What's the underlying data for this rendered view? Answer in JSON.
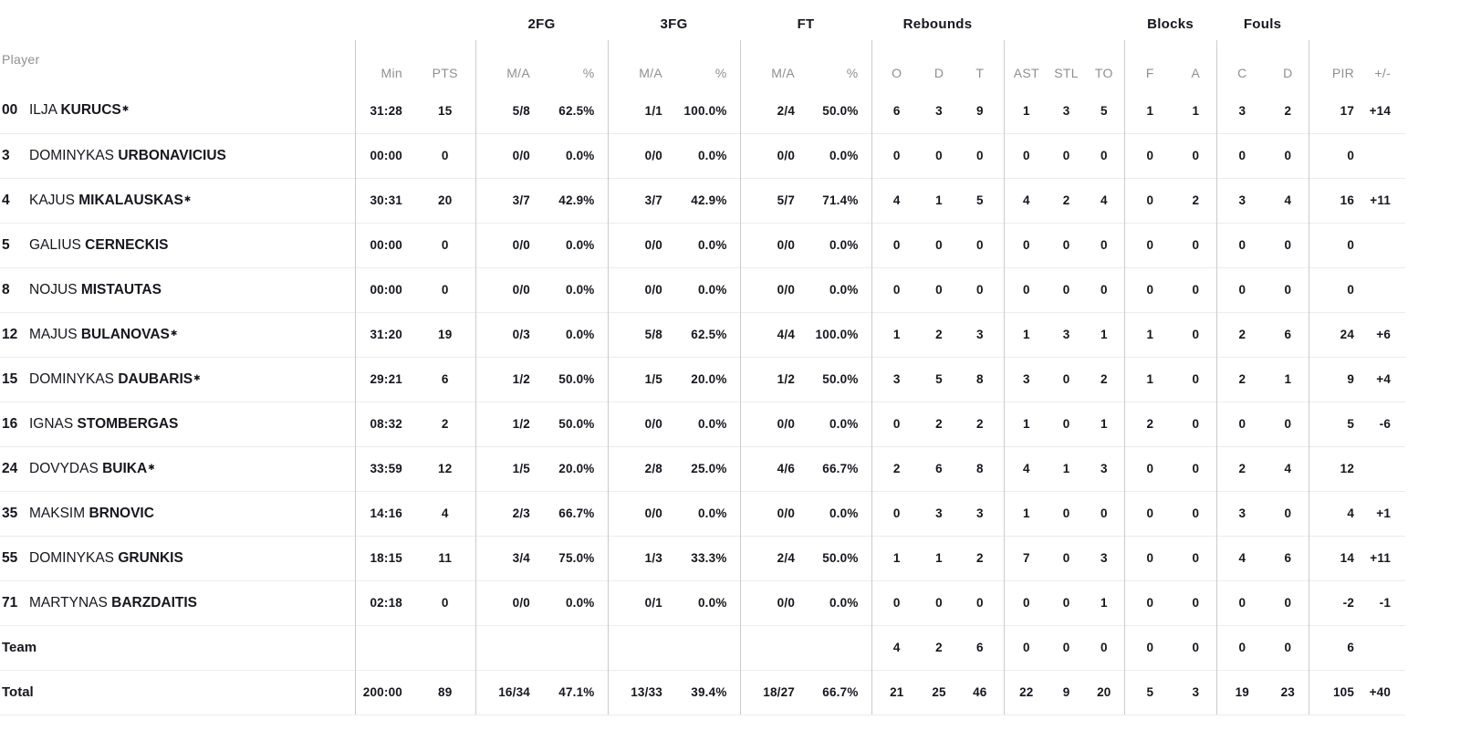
{
  "header": {
    "player_label": "Player",
    "group_labels": {
      "fg2": "2FG",
      "fg3": "3FG",
      "ft": "FT",
      "rebounds": "Rebounds",
      "blocks": "Blocks",
      "fouls": "Fouls"
    },
    "column_labels": [
      "Min",
      "PTS",
      "M/A",
      "%",
      "M/A",
      "%",
      "M/A",
      "%",
      "O",
      "D",
      "T",
      "AST",
      "STL",
      "TO",
      "F",
      "A",
      "C",
      "D",
      "PIR",
      "+/-"
    ]
  },
  "starter_marker": "✱",
  "colors": {
    "text": "#16161d",
    "muted": "#8f8f8f",
    "grid_vertical": "#cbcbcb",
    "grid_horizontal": "#ececec",
    "background": "#ffffff"
  },
  "rows": [
    {
      "number": "00",
      "first": "ILJA",
      "last": "KURUCS",
      "starter": true,
      "stats": [
        "31:28",
        "15",
        "5/8",
        "62.5%",
        "1/1",
        "100.0%",
        "2/4",
        "50.0%",
        "6",
        "3",
        "9",
        "1",
        "3",
        "5",
        "1",
        "1",
        "3",
        "2",
        "17",
        "+14"
      ]
    },
    {
      "number": "3",
      "first": "DOMINYKAS",
      "last": "URBONAVICIUS",
      "starter": false,
      "stats": [
        "00:00",
        "0",
        "0/0",
        "0.0%",
        "0/0",
        "0.0%",
        "0/0",
        "0.0%",
        "0",
        "0",
        "0",
        "0",
        "0",
        "0",
        "0",
        "0",
        "0",
        "0",
        "0",
        ""
      ]
    },
    {
      "number": "4",
      "first": "KAJUS",
      "last": "MIKALAUSKAS",
      "starter": true,
      "stats": [
        "30:31",
        "20",
        "3/7",
        "42.9%",
        "3/7",
        "42.9%",
        "5/7",
        "71.4%",
        "4",
        "1",
        "5",
        "4",
        "2",
        "4",
        "0",
        "2",
        "3",
        "4",
        "16",
        "+11"
      ]
    },
    {
      "number": "5",
      "first": "GALIUS",
      "last": "CERNECKIS",
      "starter": false,
      "stats": [
        "00:00",
        "0",
        "0/0",
        "0.0%",
        "0/0",
        "0.0%",
        "0/0",
        "0.0%",
        "0",
        "0",
        "0",
        "0",
        "0",
        "0",
        "0",
        "0",
        "0",
        "0",
        "0",
        ""
      ]
    },
    {
      "number": "8",
      "first": "NOJUS",
      "last": "MISTAUTAS",
      "starter": false,
      "stats": [
        "00:00",
        "0",
        "0/0",
        "0.0%",
        "0/0",
        "0.0%",
        "0/0",
        "0.0%",
        "0",
        "0",
        "0",
        "0",
        "0",
        "0",
        "0",
        "0",
        "0",
        "0",
        "0",
        ""
      ]
    },
    {
      "number": "12",
      "first": "MAJUS",
      "last": "BULANOVAS",
      "starter": true,
      "stats": [
        "31:20",
        "19",
        "0/3",
        "0.0%",
        "5/8",
        "62.5%",
        "4/4",
        "100.0%",
        "1",
        "2",
        "3",
        "1",
        "3",
        "1",
        "1",
        "0",
        "2",
        "6",
        "24",
        "+6"
      ]
    },
    {
      "number": "15",
      "first": "DOMINYKAS",
      "last": "DAUBARIS",
      "starter": true,
      "stats": [
        "29:21",
        "6",
        "1/2",
        "50.0%",
        "1/5",
        "20.0%",
        "1/2",
        "50.0%",
        "3",
        "5",
        "8",
        "3",
        "0",
        "2",
        "1",
        "0",
        "2",
        "1",
        "9",
        "+4"
      ]
    },
    {
      "number": "16",
      "first": "IGNAS",
      "last": "STOMBERGAS",
      "starter": false,
      "stats": [
        "08:32",
        "2",
        "1/2",
        "50.0%",
        "0/0",
        "0.0%",
        "0/0",
        "0.0%",
        "0",
        "2",
        "2",
        "1",
        "0",
        "1",
        "2",
        "0",
        "0",
        "0",
        "5",
        "-6"
      ]
    },
    {
      "number": "24",
      "first": "DOVYDAS",
      "last": "BUIKA",
      "starter": true,
      "stats": [
        "33:59",
        "12",
        "1/5",
        "20.0%",
        "2/8",
        "25.0%",
        "4/6",
        "66.7%",
        "2",
        "6",
        "8",
        "4",
        "1",
        "3",
        "0",
        "0",
        "2",
        "4",
        "12",
        ""
      ]
    },
    {
      "number": "35",
      "first": "MAKSIM",
      "last": "BRNOVIC",
      "starter": false,
      "stats": [
        "14:16",
        "4",
        "2/3",
        "66.7%",
        "0/0",
        "0.0%",
        "0/0",
        "0.0%",
        "0",
        "3",
        "3",
        "1",
        "0",
        "0",
        "0",
        "0",
        "3",
        "0",
        "4",
        "+1"
      ]
    },
    {
      "number": "55",
      "first": "DOMINYKAS",
      "last": "GRUNKIS",
      "starter": false,
      "stats": [
        "18:15",
        "11",
        "3/4",
        "75.0%",
        "1/3",
        "33.3%",
        "2/4",
        "50.0%",
        "1",
        "1",
        "2",
        "7",
        "0",
        "3",
        "0",
        "0",
        "4",
        "6",
        "14",
        "+11"
      ]
    },
    {
      "number": "71",
      "first": "MARTYNAS",
      "last": "BARZDAITIS",
      "starter": false,
      "stats": [
        "02:18",
        "0",
        "0/0",
        "0.0%",
        "0/1",
        "0.0%",
        "0/0",
        "0.0%",
        "0",
        "0",
        "0",
        "0",
        "0",
        "1",
        "0",
        "0",
        "0",
        "0",
        "-2",
        "-1"
      ]
    },
    {
      "label": "Team",
      "stats": [
        "",
        "",
        "",
        "",
        "",
        "",
        "",
        "",
        "4",
        "2",
        "6",
        "0",
        "0",
        "0",
        "0",
        "0",
        "0",
        "0",
        "6",
        ""
      ]
    },
    {
      "label": "Total",
      "stats": [
        "200:00",
        "89",
        "16/34",
        "47.1%",
        "13/33",
        "39.4%",
        "18/27",
        "66.7%",
        "21",
        "25",
        "46",
        "22",
        "9",
        "20",
        "5",
        "3",
        "19",
        "23",
        "105",
        "+40"
      ]
    }
  ]
}
